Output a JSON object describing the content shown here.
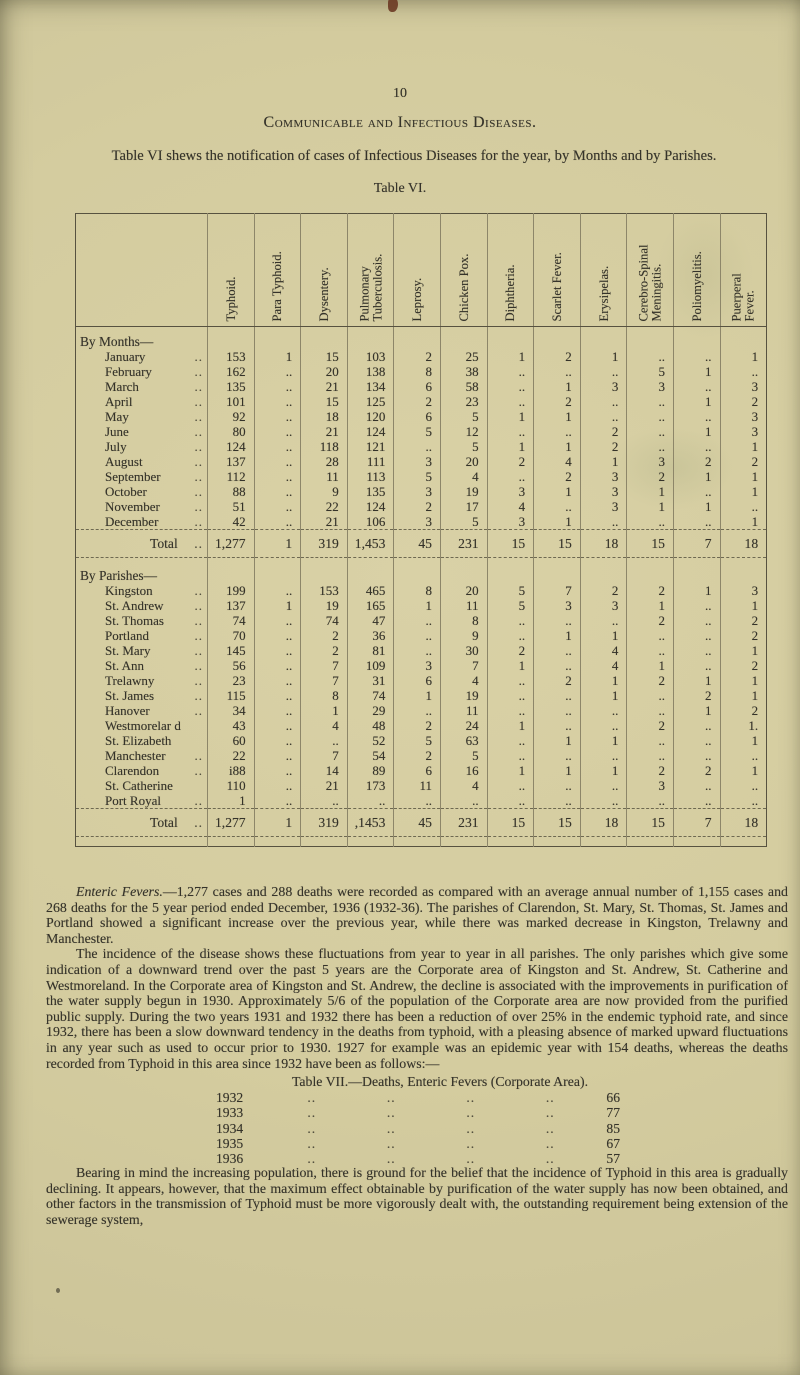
{
  "page": {
    "number": "10",
    "heading": "Communicable and Infectious Diseases.",
    "intro": "Table VI shews the notification of cases of Infectious Diseases for the year, by Months and by Parishes.",
    "table6_caption": "Table VI."
  },
  "table6": {
    "columns": [
      [
        "Typhoid."
      ],
      [
        "Para Typhoid."
      ],
      [
        "Dysentery."
      ],
      [
        "Pulmonary",
        "Tuberculosis."
      ],
      [
        "Leprosy."
      ],
      [
        "Chicken Pox."
      ],
      [
        "Diphtheria."
      ],
      [
        "Scarlet Fever."
      ],
      [
        "Erysipelas."
      ],
      [
        "Cerebro-Spinal",
        "Meningitis."
      ],
      [
        "Poliomyelitis."
      ],
      [
        "Puerperal",
        "Fever."
      ]
    ],
    "empty_cell": "..",
    "groups": [
      {
        "label": "By Months—",
        "rows": [
          {
            "label": "January",
            "leader": true,
            "values": [
              "153",
              "1",
              "15",
              "103",
              "2",
              "25",
              "1",
              "2",
              "1",
              "..",
              "..",
              "1"
            ]
          },
          {
            "label": "February",
            "leader": true,
            "values": [
              "162",
              "..",
              "20",
              "138",
              "8",
              "38",
              "..",
              "..",
              "..",
              "5",
              "1",
              ".."
            ]
          },
          {
            "label": "March",
            "leader": true,
            "values": [
              "135",
              "..",
              "21",
              "134",
              "6",
              "58",
              "..",
              "1",
              "3",
              "3",
              "..",
              "3"
            ]
          },
          {
            "label": "April",
            "leader": true,
            "values": [
              "101",
              "..",
              "15",
              "125",
              "2",
              "23",
              "..",
              "2",
              "..",
              "..",
              "1",
              "2"
            ]
          },
          {
            "label": "May",
            "leader": true,
            "values": [
              "92",
              "..",
              "18",
              "120",
              "6",
              "5",
              "1",
              "1",
              "..",
              "..",
              "..",
              "3"
            ]
          },
          {
            "label": "June",
            "leader": true,
            "values": [
              "80",
              "..",
              "21",
              "124",
              "5",
              "12",
              "..",
              "..",
              "2",
              "..",
              "1",
              "3"
            ]
          },
          {
            "label": "July",
            "leader": true,
            "values": [
              "124",
              "..",
              "118",
              "121",
              "..",
              "5",
              "1",
              "1",
              "2",
              "..",
              "..",
              "1"
            ]
          },
          {
            "label": "August",
            "leader": true,
            "values": [
              "137",
              "..",
              "28",
              "111",
              "3",
              "20",
              "2",
              "4",
              "1",
              "3",
              "2",
              "2"
            ]
          },
          {
            "label": "September",
            "leader": true,
            "values": [
              "112",
              "..",
              "11",
              "113",
              "5",
              "4",
              "..",
              "2",
              "3",
              "2",
              "1",
              "1"
            ]
          },
          {
            "label": "October",
            "leader": true,
            "values": [
              "88",
              "..",
              "9",
              "135",
              "3",
              "19",
              "3",
              "1",
              "3",
              "1",
              "..",
              "1"
            ]
          },
          {
            "label": "November",
            "leader": true,
            "values": [
              "51",
              "..",
              "22",
              "124",
              "2",
              "17",
              "4",
              "..",
              "3",
              "1",
              "1",
              ".."
            ]
          },
          {
            "label": "December",
            "leader": true,
            "values": [
              "42",
              "..",
              "21",
              "106",
              "3",
              "5",
              "3",
              "1",
              "..",
              "..",
              "..",
              "1"
            ]
          }
        ],
        "total": {
          "label": "Total",
          "leader": true,
          "values": [
            "1,277",
            "1",
            "319",
            "1,453",
            "45",
            "231",
            "15",
            "15",
            "18",
            "15",
            "7",
            "18"
          ]
        }
      },
      {
        "label": "By Parishes—",
        "rows": [
          {
            "label": "Kingston",
            "leader": true,
            "values": [
              "199",
              "..",
              "153",
              "465",
              "8",
              "20",
              "5",
              "7",
              "2",
              "2",
              "1",
              "3"
            ]
          },
          {
            "label": "St. Andrew",
            "leader": true,
            "values": [
              "137",
              "1",
              "19",
              "165",
              "1",
              "11",
              "5",
              "3",
              "3",
              "1",
              "..",
              "1"
            ]
          },
          {
            "label": "St. Thomas",
            "leader": true,
            "values": [
              "74",
              "..",
              "74",
              "47",
              "..",
              "8",
              "..",
              "..",
              "..",
              "2",
              "..",
              "2"
            ]
          },
          {
            "label": "Portland",
            "leader": true,
            "values": [
              "70",
              "..",
              "2",
              "36",
              "..",
              "9",
              "..",
              "1",
              "1",
              "..",
              "..",
              "2"
            ]
          },
          {
            "label": "St. Mary",
            "leader": true,
            "values": [
              "145",
              "..",
              "2",
              "81",
              "..",
              "30",
              "2",
              "..",
              "4",
              "..",
              "..",
              "1"
            ]
          },
          {
            "label": "St. Ann",
            "leader": true,
            "values": [
              "56",
              "..",
              "7",
              "109",
              "3",
              "7",
              "1",
              "..",
              "4",
              "1",
              "..",
              "2"
            ]
          },
          {
            "label": "Trelawny",
            "leader": true,
            "values": [
              "23",
              "..",
              "7",
              "31",
              "6",
              "4",
              "..",
              "2",
              "1",
              "2",
              "1",
              "1"
            ]
          },
          {
            "label": "St. James",
            "leader": true,
            "values": [
              "115",
              "..",
              "8",
              "74",
              "1",
              "19",
              "..",
              "..",
              "1",
              "..",
              "2",
              "1"
            ]
          },
          {
            "label": "Hanover",
            "leader": true,
            "values": [
              "34",
              "..",
              "1",
              "29",
              "..",
              "11",
              "..",
              "..",
              "..",
              "..",
              "1",
              "2"
            ]
          },
          {
            "label": "Westmorelar d",
            "leader": false,
            "values": [
              "43",
              "..",
              "4",
              "48",
              "2",
              "24",
              "1",
              "..",
              "..",
              "2",
              "..",
              "1."
            ]
          },
          {
            "label": "St. Elizabeth",
            "leader": false,
            "values": [
              "60",
              "..",
              "..",
              "52",
              "5",
              "63",
              "..",
              "1",
              "1",
              "..",
              "..",
              "1"
            ]
          },
          {
            "label": "Manchester",
            "leader": true,
            "values": [
              "22",
              "..",
              "7",
              "54",
              "2",
              "5",
              "..",
              "..",
              "..",
              "..",
              "..",
              ".."
            ]
          },
          {
            "label": "Clarendon",
            "leader": true,
            "values": [
              "i88",
              "..",
              "14",
              "89",
              "6",
              "16",
              "1",
              "1",
              "1",
              "2",
              "2",
              "1"
            ]
          },
          {
            "label": "St. Catherine",
            "leader": false,
            "values": [
              "110",
              "..",
              "21",
              "173",
              "11",
              "4",
              "..",
              "..",
              "..",
              "3",
              "..",
              ".."
            ]
          },
          {
            "label": "Port Royal",
            "leader": true,
            "values": [
              "1",
              "..",
              "..",
              "..",
              "..",
              "..",
              "..",
              "..",
              "..",
              "..",
              "..",
              ".."
            ]
          }
        ],
        "total": {
          "label": "Total",
          "leader": true,
          "values": [
            "1,277",
            "1",
            "319",
            ",1453",
            "45",
            "231",
            "15",
            "15",
            "18",
            "15",
            "7",
            "18"
          ]
        }
      }
    ]
  },
  "paragraphs": {
    "p1_lead": "Enteric Fevers.",
    "p1_rest": "—1,277 cases and 288 deaths were recorded as compared with an average annual number of 1,155 cases and 268 deaths for the 5 year period ended December, 1936 (1932-36). The parishes of Clarendon, St. Mary, St. Thomas, St. James and Portland showed a significant increase over the previous year, while there was marked decrease in Kingston, Trelawny and Manchester.",
    "p2": "The incidence of the disease shows these fluctuations from year to year in all parishes. The only parishes which give some indication of a downward trend over the past 5 years are the Corporate area of Kingston and St. Andrew, St. Catherine and Westmoreland. In the Corporate area of Kingston and St. Andrew, the decline is associated with the improvements in purification of the water supply begun in 1930. Approximately 5/6 of the population of the Corporate area are now provided from the purified public supply. During the two years 1931 and 1932 there has been a reduction of over 25% in the endemic typhoid rate, and since 1932, there has been a slow downward tendency in the deaths from typhoid, with a pleasing absence of marked upward fluctuations in any year such as used to occur prior to 1930. 1927 for example was an epidemic year with 154 deaths, whereas the deaths recorded from Typhoid in this area since 1932 have been as follows:—",
    "p3": "Bearing in mind the increasing population, there is ground for the belief that the incidence of Typhoid in this area is gradually declining. It appears, however, that the maximum effect obtainable by purification of the water supply has now been obtained, and other factors in the transmission of Typhoid must be more vigorously dealt with, the outstanding requirement being extension of the sewerage system,"
  },
  "table7": {
    "caption": "Table VII.—Deaths, Enteric Fevers (Corporate Area).",
    "leader": "..",
    "leader_repeat": 4,
    "rows": [
      {
        "year": "1932",
        "value": "66"
      },
      {
        "year": "1933",
        "value": "77"
      },
      {
        "year": "1934",
        "value": "85"
      },
      {
        "year": "1935",
        "value": "67"
      },
      {
        "year": "1936",
        "value": "57"
      }
    ]
  }
}
